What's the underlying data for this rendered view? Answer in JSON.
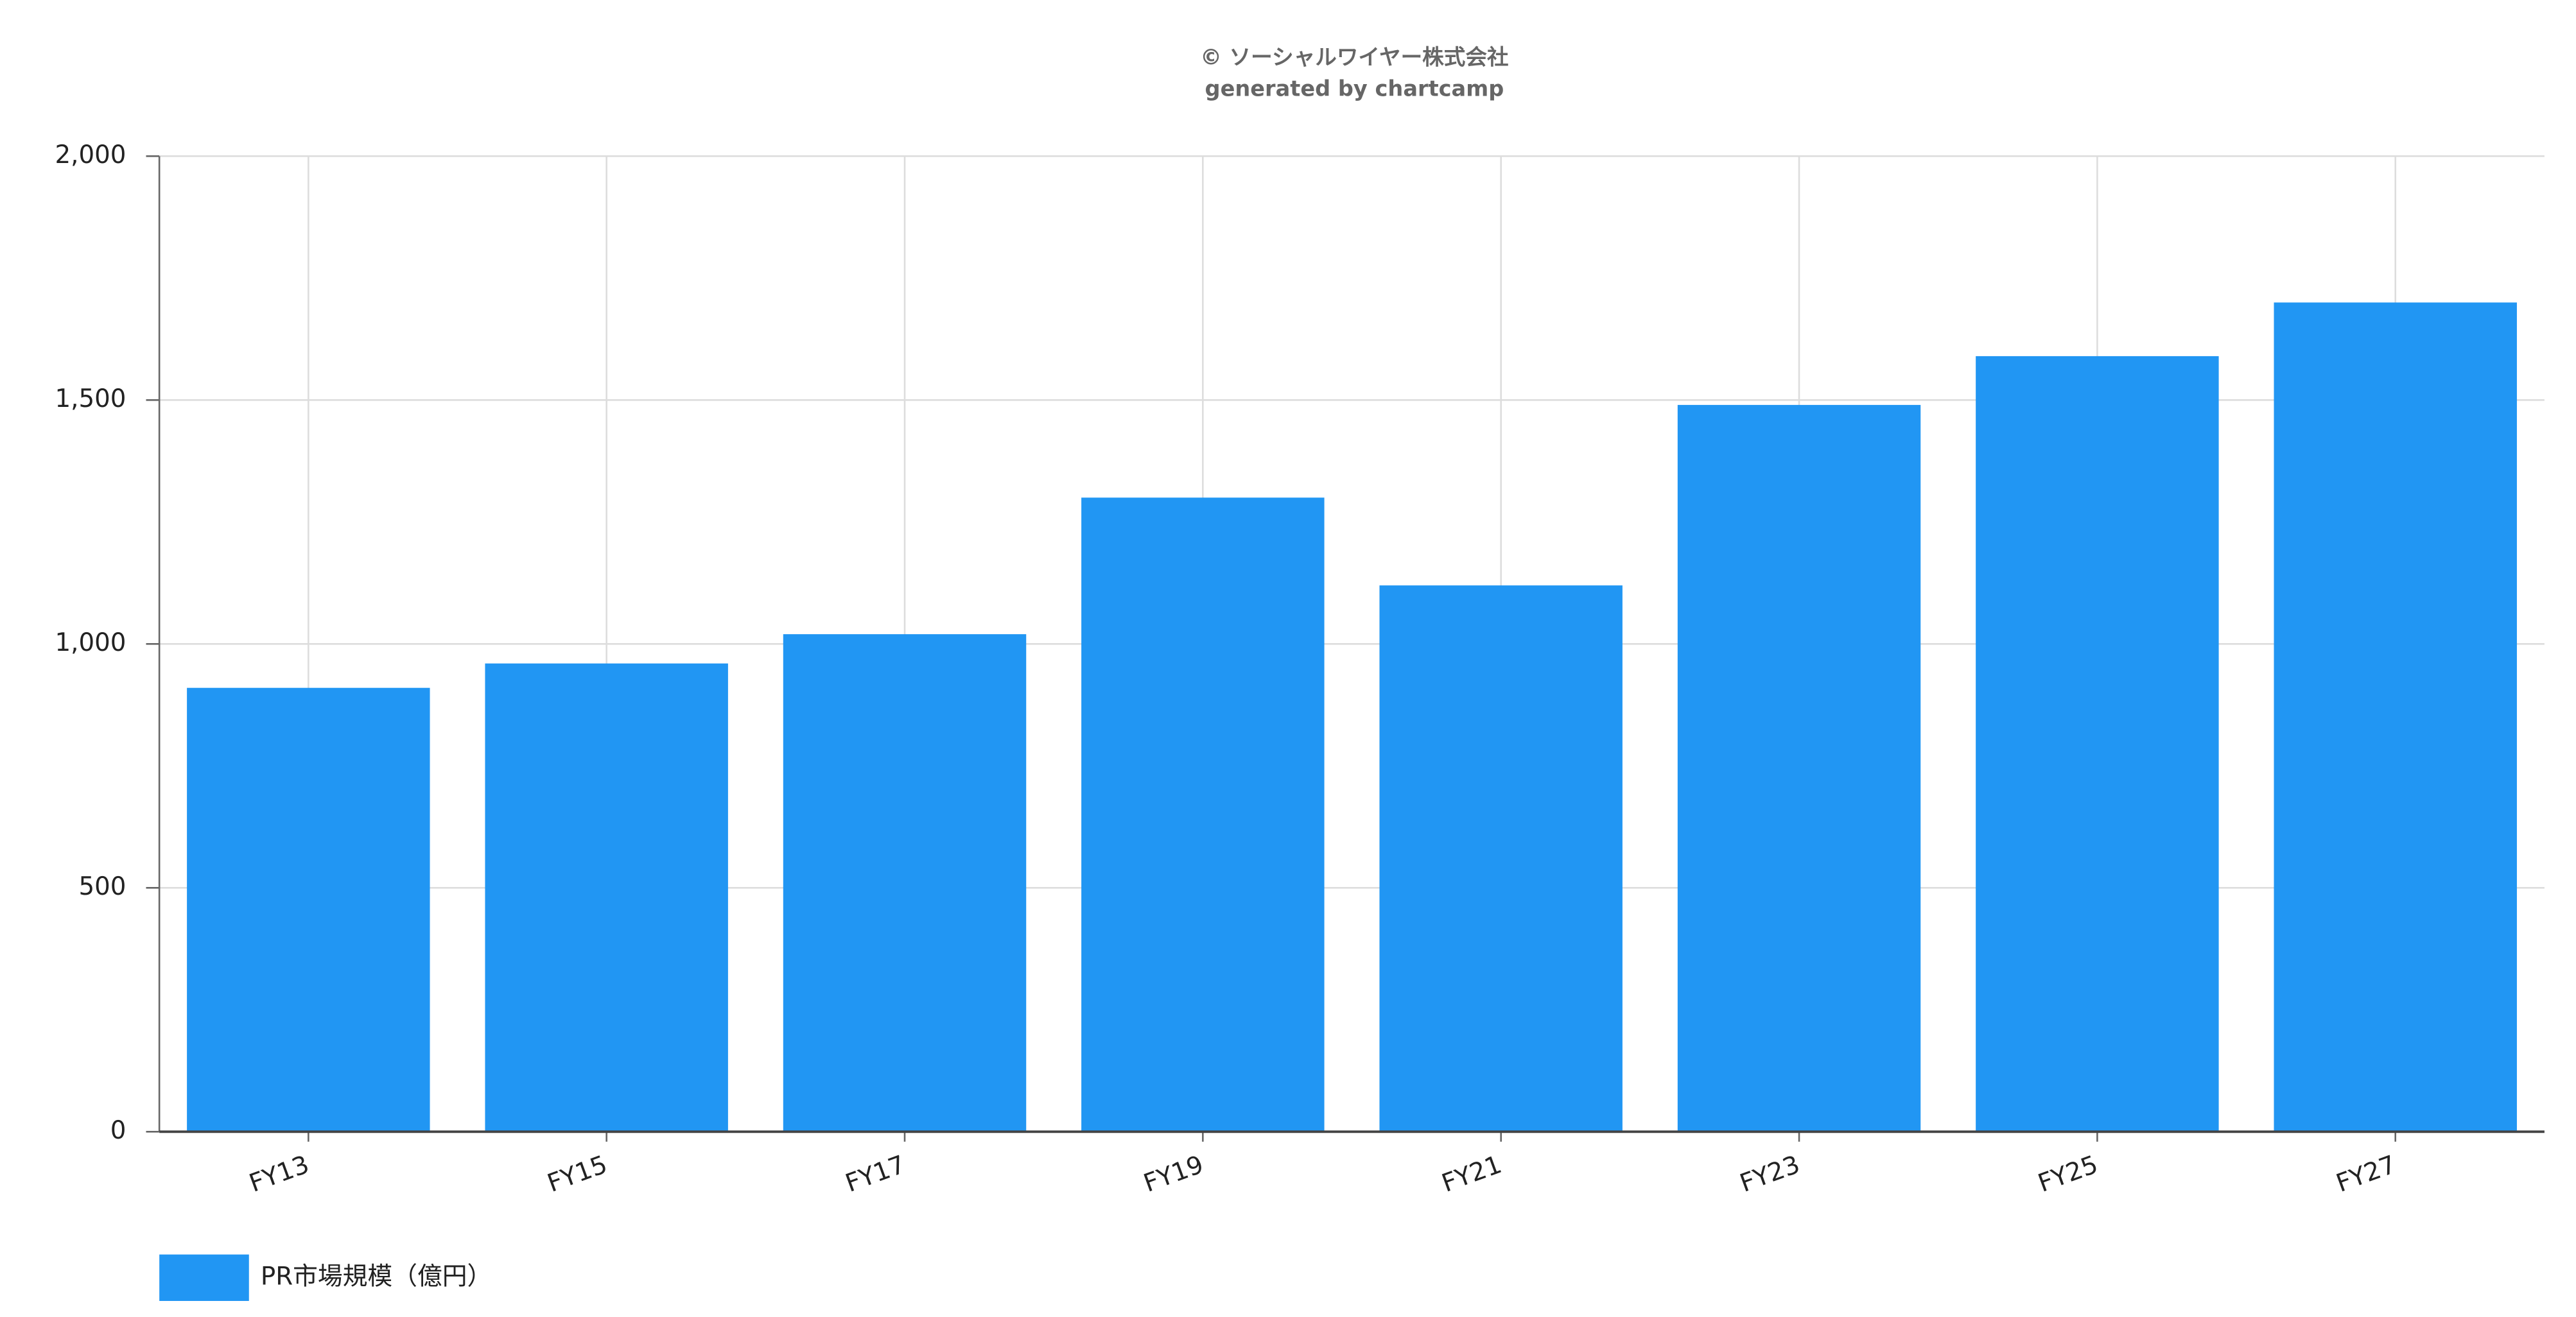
{
  "chart_data": {
    "type": "bar",
    "title": "© ソーシャルワイヤー株式会社",
    "subtitle": "generated by chartcamp",
    "categories": [
      "FY13",
      "FY15",
      "FY17",
      "FY19",
      "FY21",
      "FY23",
      "FY25",
      "FY27"
    ],
    "series": [
      {
        "name": "PR市場規模（億円）",
        "color": "#2196f3",
        "values": [
          910,
          960,
          1020,
          1300,
          1120,
          1490,
          1590,
          1700
        ]
      }
    ],
    "ylim": [
      0,
      2000
    ],
    "yticks": [
      0,
      500,
      {
        "value": 1000,
        "label": "1,000"
      },
      {
        "value": 1500,
        "label": "1,500"
      },
      {
        "value": 2000,
        "label": "2,000"
      }
    ],
    "grid": true,
    "legend": "bottom-left"
  }
}
